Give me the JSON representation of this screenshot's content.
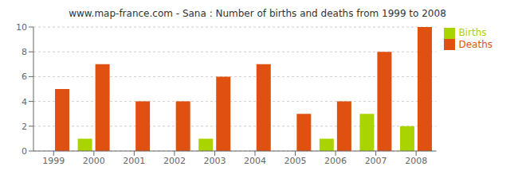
{
  "chart_data": {
    "type": "bar",
    "title": "www.map-france.com - Sana : Number of births and deaths from 1999 to 2008",
    "categories": [
      "1999",
      "2000",
      "2001",
      "2002",
      "2003",
      "2004",
      "2005",
      "2006",
      "2007",
      "2008"
    ],
    "series": [
      {
        "name": "Births",
        "color": "#aad400",
        "values": [
          0,
          1,
          0,
          0,
          1,
          0,
          0,
          1,
          3,
          2
        ]
      },
      {
        "name": "Deaths",
        "color": "#e05010",
        "values": [
          5,
          7,
          4,
          4,
          6,
          7,
          3,
          4,
          8,
          10
        ]
      }
    ],
    "ylim": [
      0,
      10
    ],
    "yticks": [
      0,
      2,
      4,
      6,
      8,
      10
    ],
    "grid": true,
    "legend": "upper right"
  }
}
